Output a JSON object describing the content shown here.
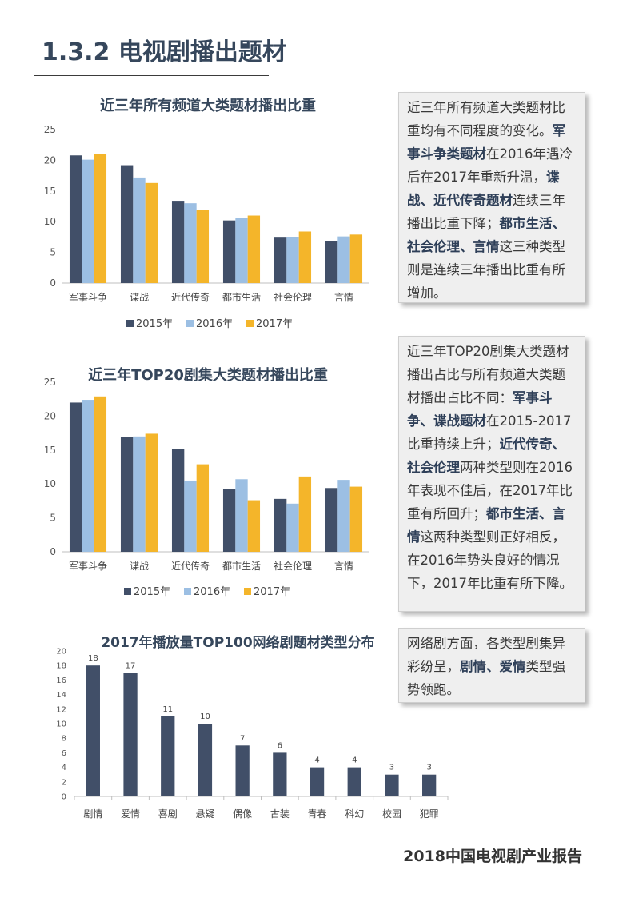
{
  "section_title": "1.3.2  电视剧播出题材",
  "chart_data": [
    {
      "type": "bar",
      "title": "近三年所有频道大类题材播出比重",
      "categories": [
        "军事斗争",
        "谍战",
        "近代传奇",
        "都市生活",
        "社会伦理",
        "言情"
      ],
      "ylim": [
        0,
        25
      ],
      "yticks": [
        0,
        5,
        10,
        15,
        20,
        25
      ],
      "series": [
        {
          "name": "2015年",
          "color": "#414f68",
          "values": [
            20.8,
            19.2,
            13.4,
            10.2,
            7.4,
            6.9
          ]
        },
        {
          "name": "2016年",
          "color": "#9cbfe3",
          "values": [
            20.1,
            17.2,
            13.0,
            10.6,
            7.5,
            7.6
          ]
        },
        {
          "name": "2017年",
          "color": "#f4b52a",
          "values": [
            21.0,
            16.3,
            11.9,
            11.0,
            8.4,
            7.9
          ]
        }
      ]
    },
    {
      "type": "bar",
      "title": "近三年TOP20剧集大类题材播出比重",
      "categories": [
        "军事斗争",
        "谍战",
        "近代传奇",
        "都市生活",
        "社会伦理",
        "言情"
      ],
      "ylim": [
        0,
        25
      ],
      "yticks": [
        0,
        5,
        10,
        15,
        20,
        25
      ],
      "series": [
        {
          "name": "2015年",
          "color": "#414f68",
          "values": [
            22.0,
            16.9,
            15.1,
            9.3,
            7.8,
            9.4
          ]
        },
        {
          "name": "2016年",
          "color": "#9cbfe3",
          "values": [
            22.4,
            17.0,
            10.5,
            10.7,
            7.1,
            10.6
          ]
        },
        {
          "name": "2017年",
          "color": "#f4b52a",
          "values": [
            22.9,
            17.4,
            12.9,
            7.6,
            11.1,
            9.6
          ]
        }
      ]
    },
    {
      "type": "bar",
      "title": "2017年播放量TOP100网络剧题材类型分布",
      "categories": [
        "剧情",
        "爱情",
        "喜剧",
        "悬疑",
        "偶像",
        "古装",
        "青春",
        "科幻",
        "校园",
        "犯罪"
      ],
      "ylim": [
        0,
        20
      ],
      "yticks": [
        0,
        2,
        4,
        6,
        8,
        10,
        12,
        14,
        16,
        18,
        20
      ],
      "values": [
        18,
        17,
        11,
        10,
        7,
        6,
        4,
        4,
        3,
        3
      ],
      "color": "#414f68"
    }
  ],
  "notes": [
    [
      {
        "t": "近三年所有频道大类题材比重均有不同程度的变化。"
      },
      {
        "t": "军事斗争类题材",
        "b": true
      },
      {
        "t": "在2016年遇冷后在2017年重新升温，"
      },
      {
        "t": "谍战、近代传奇题材",
        "b": true
      },
      {
        "t": "连续三年播出比重下降；"
      },
      {
        "t": "都市生活、社会伦理、言情",
        "b": true
      },
      {
        "t": "这三种类型则是连续三年播出比重有所增加。"
      }
    ],
    [
      {
        "t": "近三年TOP20剧集大类题材播出占比与所有频道大类题材播出占比不同："
      },
      {
        "t": "军事斗争、谍战题材",
        "b": true
      },
      {
        "t": "在2015-2017比重持续上升；"
      },
      {
        "t": "近代传奇、社会伦理",
        "b": true
      },
      {
        "t": "两种类型则在2016年表现不佳后，在2017年比重有所回升；"
      },
      {
        "t": "都市生活、言情",
        "b": true
      },
      {
        "t": "这两种类型则正好相反，在2016年势头良好的情况下，2017年比重有所下降。"
      }
    ],
    [
      {
        "t": "网络剧方面，各类型剧集异彩纷呈，"
      },
      {
        "t": "剧情、爱情",
        "b": true
      },
      {
        "t": "类型强势领跑。"
      }
    ]
  ],
  "footer": "2018中国电视剧产业报告"
}
